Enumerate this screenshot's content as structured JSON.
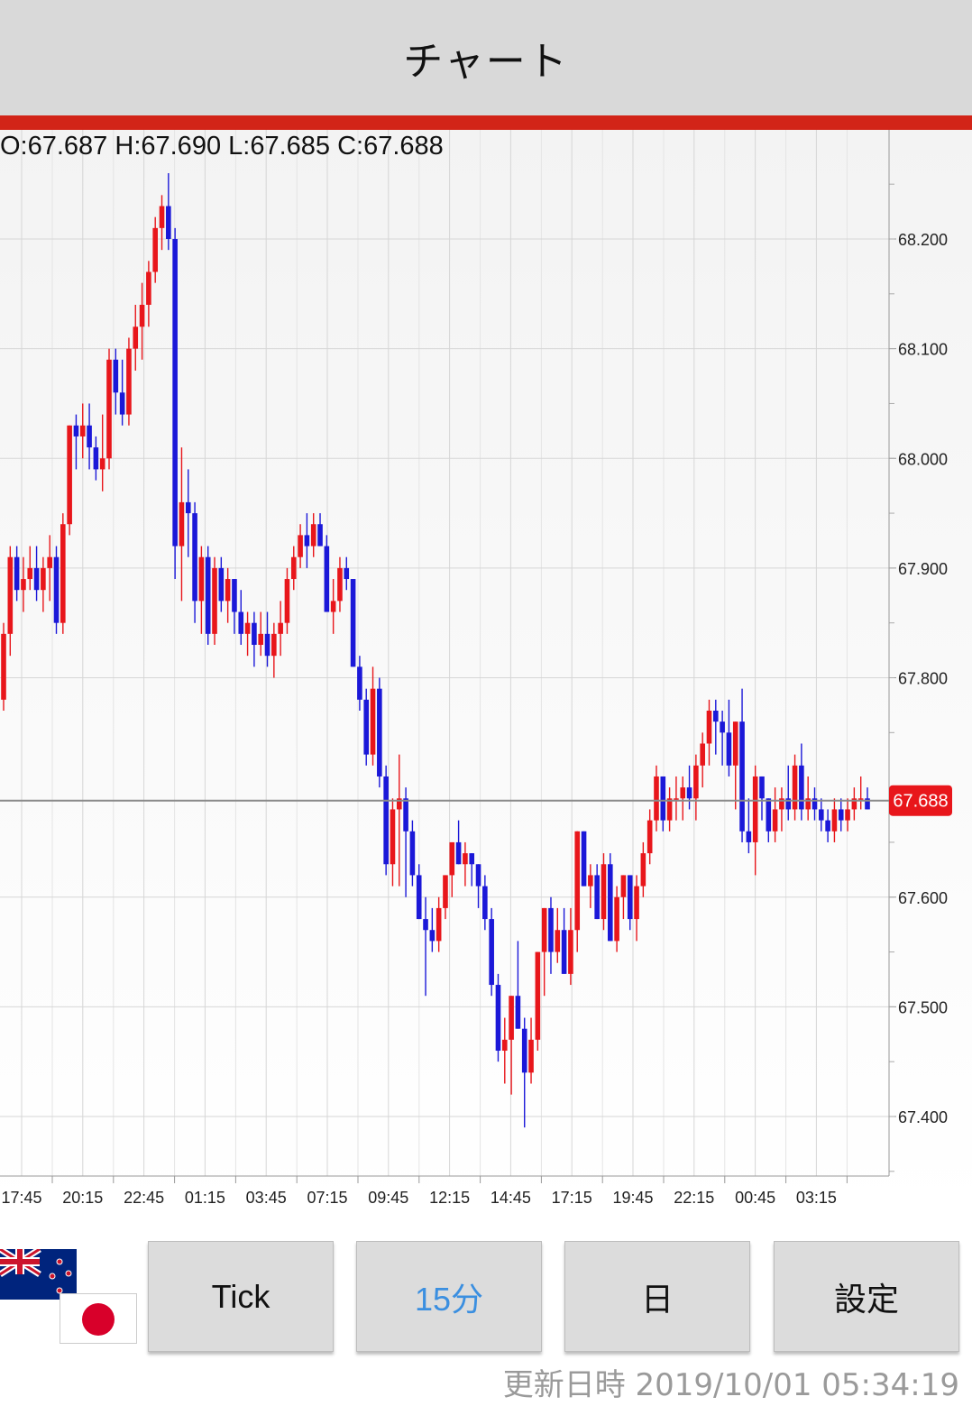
{
  "header": {
    "title": "チャート"
  },
  "ohlc_text": "O:67.687 H:67.690 L:67.685 C:67.688",
  "current_price": "67.688",
  "colors": {
    "up": "#e8161b",
    "down": "#1b18d8",
    "accent_red": "#d22418",
    "active_tab": "#3b8fe0"
  },
  "buttons": [
    {
      "label": "Tick",
      "active": false
    },
    {
      "label": "15分",
      "active": true
    },
    {
      "label": "日",
      "active": false
    },
    {
      "label": "設定",
      "active": false
    }
  ],
  "flags": [
    "nz-flag-icon",
    "jp-flag-icon"
  ],
  "updated_text": "更新日時 2019/10/01 05:34:19",
  "chart_data": {
    "type": "candlestick",
    "y_ticks": [
      "68.200",
      "68.100",
      "68.000",
      "67.900",
      "67.800",
      "67.600",
      "67.500",
      "67.400"
    ],
    "x_ticks": [
      "17:45",
      "20:15",
      "22:45",
      "01:15",
      "03:45",
      "07:15",
      "09:45",
      "12:15",
      "14:45",
      "17:15",
      "19:45",
      "22:15",
      "00:45",
      "03:15"
    ],
    "ylim": [
      67.35,
      68.27
    ],
    "grid": true,
    "candles": [
      [
        67.78,
        67.85,
        67.77,
        67.84
      ],
      [
        67.84,
        67.92,
        67.82,
        67.91
      ],
      [
        67.91,
        67.92,
        67.87,
        67.88
      ],
      [
        67.88,
        67.91,
        67.86,
        67.89
      ],
      [
        67.89,
        67.92,
        67.88,
        67.9
      ],
      [
        67.9,
        67.92,
        67.87,
        67.88
      ],
      [
        67.88,
        67.91,
        67.86,
        67.9
      ],
      [
        67.9,
        67.93,
        67.87,
        67.91
      ],
      [
        67.91,
        67.92,
        67.84,
        67.85
      ],
      [
        67.85,
        67.95,
        67.84,
        67.94
      ],
      [
        67.94,
        68.03,
        67.93,
        68.03
      ],
      [
        68.03,
        68.04,
        67.99,
        68.02
      ],
      [
        68.02,
        68.05,
        68.0,
        68.03
      ],
      [
        68.03,
        68.05,
        67.99,
        68.01
      ],
      [
        68.01,
        68.02,
        67.98,
        67.99
      ],
      [
        67.99,
        68.04,
        67.97,
        68.0
      ],
      [
        68.0,
        68.1,
        67.99,
        68.09
      ],
      [
        68.09,
        68.1,
        68.04,
        68.06
      ],
      [
        68.06,
        68.09,
        68.03,
        68.04
      ],
      [
        68.04,
        68.11,
        68.03,
        68.1
      ],
      [
        68.1,
        68.14,
        68.08,
        68.12
      ],
      [
        68.12,
        68.16,
        68.09,
        68.14
      ],
      [
        68.14,
        68.18,
        68.12,
        68.17
      ],
      [
        68.17,
        68.22,
        68.16,
        68.21
      ],
      [
        68.21,
        68.24,
        68.19,
        68.23
      ],
      [
        68.23,
        68.26,
        68.19,
        68.2
      ],
      [
        68.2,
        68.21,
        67.89,
        67.92
      ],
      [
        67.92,
        68.01,
        67.87,
        67.96
      ],
      [
        67.96,
        67.99,
        67.91,
        67.95
      ],
      [
        67.95,
        67.96,
        67.85,
        67.87
      ],
      [
        67.87,
        67.92,
        67.84,
        67.91
      ],
      [
        67.91,
        67.92,
        67.83,
        67.84
      ],
      [
        67.84,
        67.91,
        67.83,
        67.9
      ],
      [
        67.9,
        67.91,
        67.86,
        67.87
      ],
      [
        67.87,
        67.9,
        67.85,
        67.89
      ],
      [
        67.89,
        67.89,
        67.84,
        67.86
      ],
      [
        67.86,
        67.88,
        67.83,
        67.84
      ],
      [
        67.84,
        67.86,
        67.82,
        67.85
      ],
      [
        67.85,
        67.86,
        67.81,
        67.83
      ],
      [
        67.83,
        67.86,
        67.82,
        67.84
      ],
      [
        67.84,
        67.86,
        67.81,
        67.82
      ],
      [
        67.82,
        67.85,
        67.8,
        67.84
      ],
      [
        67.84,
        67.87,
        67.82,
        67.85
      ],
      [
        67.85,
        67.9,
        67.84,
        67.89
      ],
      [
        67.89,
        67.92,
        67.88,
        67.91
      ],
      [
        67.91,
        67.94,
        67.9,
        67.93
      ],
      [
        67.93,
        67.95,
        67.9,
        67.92
      ],
      [
        67.92,
        67.95,
        67.91,
        67.94
      ],
      [
        67.94,
        67.95,
        67.92,
        67.92
      ],
      [
        67.92,
        67.93,
        67.86,
        67.86
      ],
      [
        67.86,
        67.89,
        67.84,
        67.87
      ],
      [
        67.87,
        67.91,
        67.86,
        67.9
      ],
      [
        67.9,
        67.91,
        67.88,
        67.89
      ],
      [
        67.89,
        67.89,
        67.81,
        67.81
      ],
      [
        67.81,
        67.82,
        67.77,
        67.78
      ],
      [
        67.78,
        67.79,
        67.72,
        67.73
      ],
      [
        67.73,
        67.81,
        67.72,
        67.79
      ],
      [
        67.79,
        67.8,
        67.7,
        67.71
      ],
      [
        67.71,
        67.72,
        67.62,
        67.63
      ],
      [
        67.63,
        67.69,
        67.61,
        67.68
      ],
      [
        67.68,
        67.73,
        67.61,
        67.69
      ],
      [
        67.69,
        67.7,
        67.6,
        67.66
      ],
      [
        67.66,
        67.67,
        67.61,
        67.62
      ],
      [
        67.62,
        67.63,
        67.58,
        67.58
      ],
      [
        67.58,
        67.6,
        67.51,
        67.57
      ],
      [
        67.57,
        67.59,
        67.55,
        67.56
      ],
      [
        67.56,
        67.6,
        67.55,
        67.59
      ],
      [
        67.59,
        67.62,
        67.58,
        67.62
      ],
      [
        67.62,
        67.65,
        67.6,
        67.65
      ],
      [
        67.65,
        67.67,
        67.63,
        67.63
      ],
      [
        67.63,
        67.65,
        67.61,
        67.64
      ],
      [
        67.64,
        67.64,
        67.61,
        67.63
      ],
      [
        67.63,
        67.63,
        67.59,
        67.61
      ],
      [
        67.61,
        67.62,
        67.57,
        67.58
      ],
      [
        67.58,
        67.59,
        67.51,
        67.52
      ],
      [
        67.52,
        67.53,
        67.45,
        67.46
      ],
      [
        67.46,
        67.49,
        67.43,
        67.47
      ],
      [
        67.47,
        67.51,
        67.42,
        67.51
      ],
      [
        67.51,
        67.56,
        67.48,
        67.48
      ],
      [
        67.48,
        67.49,
        67.39,
        67.44
      ],
      [
        67.44,
        67.49,
        67.43,
        67.47
      ],
      [
        67.47,
        67.55,
        67.46,
        67.55
      ],
      [
        67.55,
        67.59,
        67.51,
        67.59
      ],
      [
        67.59,
        67.6,
        67.53,
        67.55
      ],
      [
        67.55,
        67.59,
        67.54,
        67.57
      ],
      [
        67.57,
        67.59,
        67.53,
        67.53
      ],
      [
        67.53,
        67.59,
        67.52,
        67.57
      ],
      [
        67.57,
        67.66,
        67.55,
        67.66
      ],
      [
        67.66,
        67.66,
        67.61,
        67.61
      ],
      [
        67.61,
        67.63,
        67.59,
        67.62
      ],
      [
        67.62,
        67.63,
        67.58,
        67.58
      ],
      [
        67.58,
        67.64,
        67.57,
        67.63
      ],
      [
        67.63,
        67.64,
        67.56,
        67.56
      ],
      [
        67.56,
        67.61,
        67.55,
        67.6
      ],
      [
        67.6,
        67.62,
        67.58,
        67.62
      ],
      [
        67.62,
        67.62,
        67.57,
        67.58
      ],
      [
        67.58,
        67.62,
        67.56,
        67.61
      ],
      [
        67.61,
        67.65,
        67.6,
        67.64
      ],
      [
        67.64,
        67.68,
        67.63,
        67.67
      ],
      [
        67.67,
        67.72,
        67.66,
        67.71
      ],
      [
        67.71,
        67.71,
        67.66,
        67.67
      ],
      [
        67.67,
        67.7,
        67.66,
        67.69
      ],
      [
        67.69,
        67.71,
        67.67,
        67.69
      ],
      [
        67.69,
        67.71,
        67.67,
        67.7
      ],
      [
        67.7,
        67.72,
        67.68,
        67.69
      ],
      [
        67.69,
        67.73,
        67.67,
        67.72
      ],
      [
        67.72,
        67.75,
        67.7,
        67.74
      ],
      [
        67.74,
        67.78,
        67.72,
        67.77
      ],
      [
        67.77,
        67.78,
        67.73,
        67.76
      ],
      [
        67.76,
        67.77,
        67.72,
        67.75
      ],
      [
        67.75,
        67.78,
        67.71,
        67.72
      ],
      [
        67.72,
        67.76,
        67.68,
        67.76
      ],
      [
        67.76,
        67.79,
        67.65,
        67.66
      ],
      [
        67.66,
        67.69,
        67.64,
        67.65
      ],
      [
        67.65,
        67.72,
        67.62,
        67.71
      ],
      [
        67.71,
        67.71,
        67.67,
        67.69
      ],
      [
        67.69,
        67.69,
        67.65,
        67.66
      ],
      [
        67.66,
        67.7,
        67.65,
        67.68
      ],
      [
        67.68,
        67.7,
        67.66,
        67.69
      ],
      [
        67.69,
        67.72,
        67.67,
        67.68
      ],
      [
        67.68,
        67.73,
        67.67,
        67.72
      ],
      [
        67.72,
        67.74,
        67.67,
        67.68
      ],
      [
        67.68,
        67.71,
        67.67,
        67.69
      ],
      [
        67.69,
        67.7,
        67.67,
        67.68
      ],
      [
        67.68,
        67.69,
        67.66,
        67.67
      ],
      [
        67.67,
        67.68,
        67.65,
        67.66
      ],
      [
        67.66,
        67.69,
        67.65,
        67.68
      ],
      [
        67.68,
        67.69,
        67.66,
        67.67
      ],
      [
        67.67,
        67.69,
        67.66,
        67.68
      ],
      [
        67.68,
        67.7,
        67.67,
        67.69
      ],
      [
        67.69,
        67.71,
        67.68,
        67.69
      ],
      [
        67.69,
        67.7,
        67.68,
        67.68
      ]
    ]
  }
}
